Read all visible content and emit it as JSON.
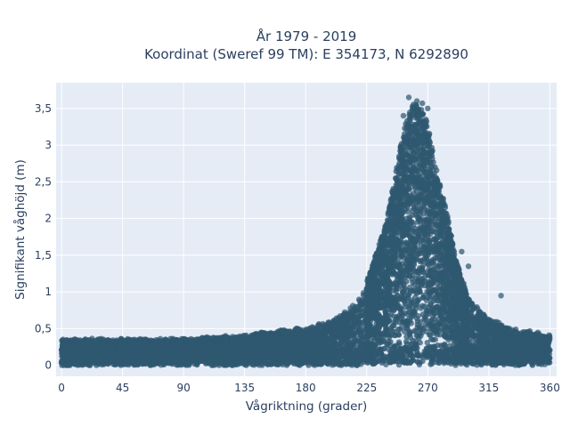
{
  "chart_data": {
    "type": "scatter",
    "title_line1": "År 1979 - 2019",
    "title_line2": "Koordinat (Sweref 99 TM): E 354173, N 6292890",
    "xlabel": "Vågriktning (grader)",
    "ylabel": "Signifikant våghöjd (m)",
    "xlim": [
      -4,
      365
    ],
    "ylim": [
      -0.15,
      3.85
    ],
    "x_ticks": [
      0,
      45,
      90,
      135,
      180,
      225,
      270,
      315,
      360
    ],
    "x_tick_labels": [
      "0",
      "45",
      "90",
      "135",
      "180",
      "225",
      "270",
      "315",
      "360"
    ],
    "y_ticks": [
      0,
      0.5,
      1,
      1.5,
      2,
      2.5,
      3,
      3.5
    ],
    "y_tick_labels": [
      "0",
      "0,5",
      "1",
      "1,5",
      "2",
      "2,5",
      "3",
      "3,5"
    ],
    "grid": true,
    "marker_color": "#2f5870",
    "plot_background": "#e5ecf6",
    "grid_color": "#ffffff",
    "envelope": {
      "x": [
        0,
        45,
        90,
        135,
        150,
        180,
        200,
        220,
        230,
        240,
        245,
        250,
        255,
        258,
        262,
        265,
        268,
        272,
        275,
        280,
        285,
        290,
        295,
        300,
        310,
        320,
        330,
        345,
        360
      ],
      "y_max": [
        0.35,
        0.35,
        0.35,
        0.4,
        0.45,
        0.5,
        0.6,
        0.9,
        1.4,
        2.0,
        2.5,
        3.0,
        3.4,
        3.55,
        3.6,
        3.5,
        3.45,
        3.1,
        2.8,
        2.4,
        2.0,
        1.5,
        1.2,
        0.9,
        0.7,
        0.6,
        0.5,
        0.45,
        0.4
      ]
    },
    "highlighted_points": [
      {
        "x": 256,
        "y": 3.65
      },
      {
        "x": 262,
        "y": 3.6
      },
      {
        "x": 266,
        "y": 3.57
      },
      {
        "x": 270,
        "y": 3.5
      },
      {
        "x": 252,
        "y": 3.4
      },
      {
        "x": 324,
        "y": 0.95
      },
      {
        "x": 300,
        "y": 1.35
      },
      {
        "x": 295,
        "y": 1.55
      }
    ]
  }
}
